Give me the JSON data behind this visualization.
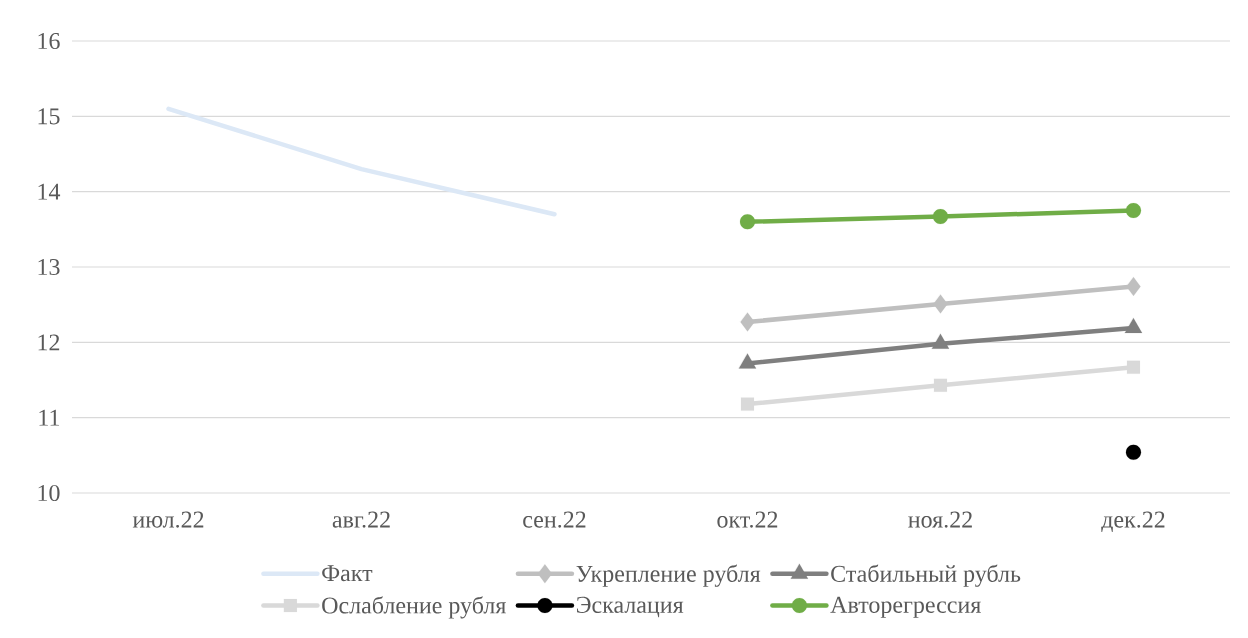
{
  "chart_data": {
    "type": "line",
    "categories": [
      "июл.22",
      "авг.22",
      "сен.22",
      "окт.22",
      "ноя.22",
      "дек.22"
    ],
    "series": [
      {
        "name": "Факт",
        "color": "#dce8f6",
        "marker": "none",
        "line_style": "solid",
        "values": [
          15.1,
          14.3,
          13.7,
          null,
          null,
          null
        ]
      },
      {
        "name": "Укрепление рубля",
        "color": "#bfbfbf",
        "marker": "diamond",
        "line_style": "solid",
        "values": [
          null,
          null,
          null,
          12.27,
          12.51,
          12.74
        ]
      },
      {
        "name": "Стабильный рубль",
        "color": "#7f7f7f",
        "marker": "triangle",
        "line_style": "solid",
        "values": [
          null,
          null,
          null,
          11.72,
          11.98,
          12.19
        ]
      },
      {
        "name": "Ослабление рубля",
        "color": "#d9d9d9",
        "marker": "square",
        "line_style": "solid",
        "values": [
          null,
          null,
          null,
          11.18,
          11.43,
          11.67
        ]
      },
      {
        "name": "Эскалация",
        "color": "#000000",
        "marker": "circle",
        "line_style": "solid",
        "values": [
          null,
          null,
          null,
          null,
          null,
          10.54
        ]
      },
      {
        "name": "Авторегрессия",
        "color": "#70ad47",
        "marker": "circle",
        "line_style": "solid",
        "values": [
          null,
          null,
          null,
          13.6,
          13.67,
          13.75
        ]
      }
    ],
    "ylim": [
      10,
      16
    ],
    "yticks": [
      10,
      11,
      12,
      13,
      14,
      15,
      16
    ],
    "grid": "y",
    "legend": "bottom"
  }
}
